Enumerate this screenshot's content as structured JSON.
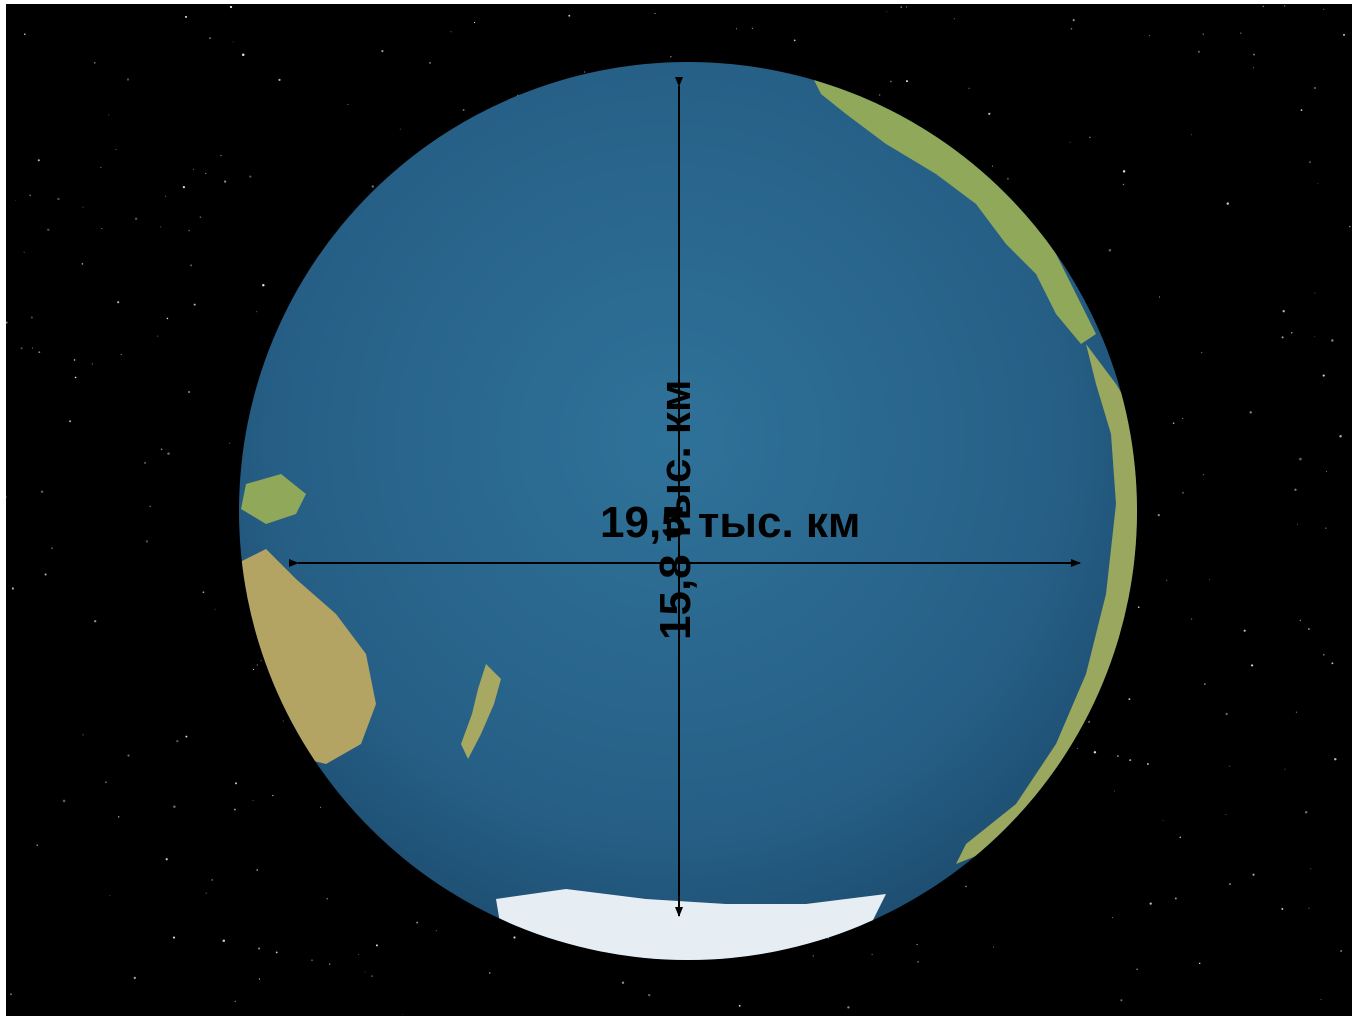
{
  "measurements": {
    "width_label": "19,5 тыс. км",
    "height_label": "15,8 тыс. км"
  },
  "colors": {
    "space": "#000000",
    "ocean": "#2a6a92",
    "land": "#8fa85a",
    "ice": "#e6eef4",
    "arrows": "#000000"
  }
}
